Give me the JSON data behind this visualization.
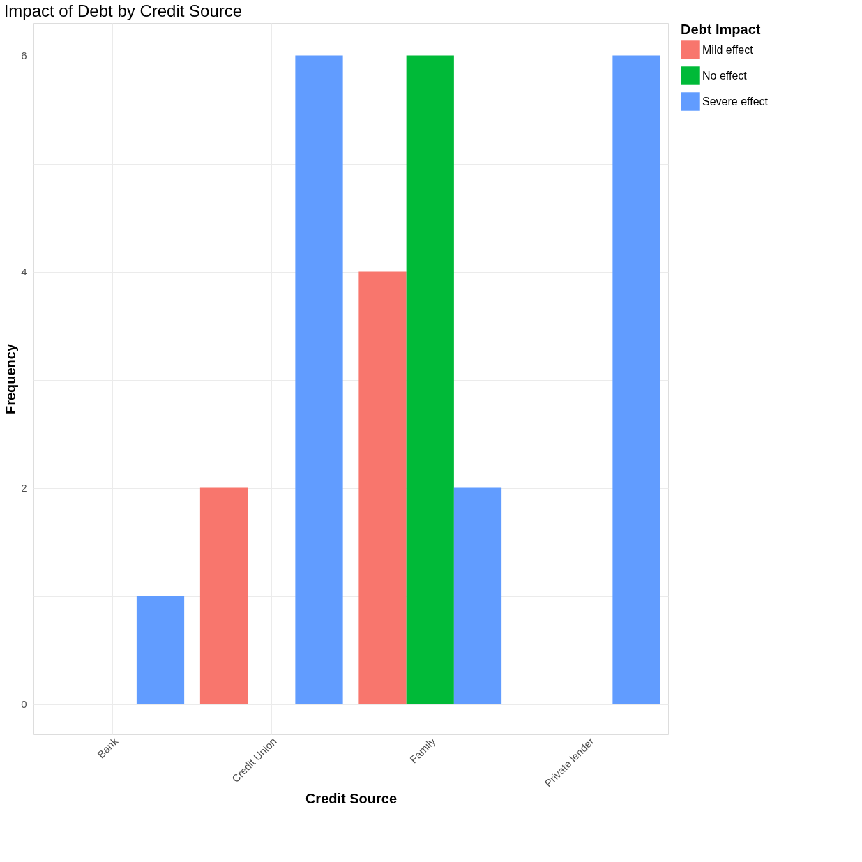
{
  "chart_data": {
    "type": "bar",
    "title": "Impact of Debt by Credit Source",
    "xlabel": "Credit Source",
    "ylabel": "Frequency",
    "legend_title": "Debt Impact",
    "categories": [
      "Bank",
      "Credit Union",
      "Family",
      "Private lender"
    ],
    "series": [
      {
        "name": "Mild effect",
        "color": "#f8766d",
        "values": [
          null,
          2,
          4,
          null
        ]
      },
      {
        "name": "No effect",
        "color": "#00ba38",
        "values": [
          null,
          null,
          6,
          null
        ]
      },
      {
        "name": "Severe effect",
        "color": "#619cff",
        "values": [
          1,
          6,
          2,
          6
        ]
      }
    ],
    "ylim": [
      -0.28,
      6.3
    ],
    "yticks": [
      0,
      {
        "value": 1,
        "label": null
      },
      2,
      {
        "value": 3,
        "label": null
      },
      4,
      {
        "value": 5,
        "label": null
      },
      6
    ],
    "grid": true,
    "legend": "right"
  }
}
